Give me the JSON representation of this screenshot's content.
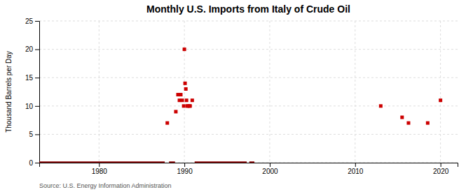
{
  "chart_data": {
    "type": "scatter",
    "title": "Monthly U.S. Imports from Italy of Crude Oil",
    "ylabel": "Thousand Barrels per Day",
    "annotations": [
      "Source: U.S. Energy Information Administration"
    ],
    "xlim": [
      1973,
      2022
    ],
    "ylim": [
      0,
      25
    ],
    "xticks": [
      1980,
      1990,
      2000,
      2010,
      2020
    ],
    "yticks": [
      0,
      5,
      10,
      15,
      20,
      25
    ],
    "grid": true,
    "series": [
      {
        "type": "scatter",
        "marker": "square",
        "color": "#cc0000",
        "x": [
          1988.0,
          1989.0,
          1989.25,
          1989.42,
          1989.58,
          1989.75,
          1989.92,
          1990.0,
          1990.08,
          1990.17,
          1990.25,
          1990.33,
          1990.42,
          1990.58,
          1990.67,
          1990.92,
          2013.0,
          2015.5,
          2016.25,
          2018.5,
          2020.0
        ],
        "values": [
          7,
          9,
          12,
          11,
          12,
          11,
          10,
          20,
          14,
          13,
          11,
          10,
          10,
          10,
          10,
          11,
          10,
          8,
          7,
          7,
          11
        ]
      },
      {
        "type": "line",
        "color": "#880000",
        "x": [
          1973.0,
          1987.7,
          null,
          1988.2,
          1988.9,
          null,
          1991.2,
          1997.3,
          null,
          1997.6,
          1998.2
        ],
        "values": [
          0,
          0,
          null,
          0,
          0,
          null,
          0,
          0,
          null,
          0,
          0
        ]
      }
    ]
  }
}
